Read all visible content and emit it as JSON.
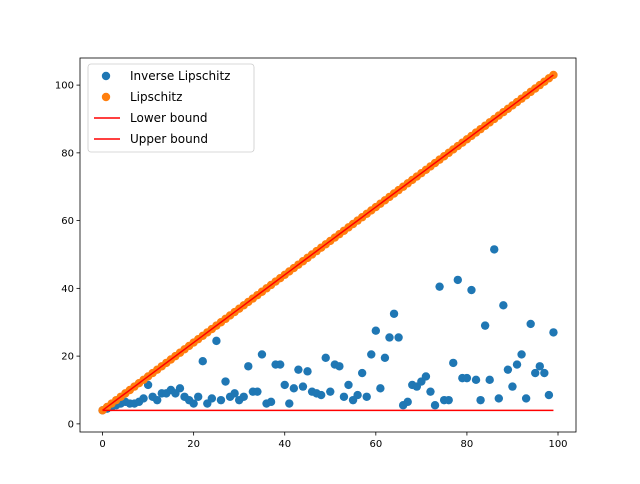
{
  "chart_data": {
    "type": "scatter",
    "x": [
      0,
      1,
      2,
      3,
      4,
      5,
      6,
      7,
      8,
      9,
      10,
      11,
      12,
      13,
      14,
      15,
      16,
      17,
      18,
      19,
      20,
      21,
      22,
      23,
      24,
      25,
      26,
      27,
      28,
      29,
      30,
      31,
      32,
      33,
      34,
      35,
      36,
      37,
      38,
      39,
      40,
      41,
      42,
      43,
      44,
      45,
      46,
      47,
      48,
      49,
      50,
      51,
      52,
      53,
      54,
      55,
      56,
      57,
      58,
      59,
      60,
      61,
      62,
      63,
      64,
      65,
      66,
      67,
      68,
      69,
      70,
      71,
      72,
      73,
      74,
      75,
      76,
      77,
      78,
      79,
      80,
      81,
      82,
      83,
      84,
      85,
      86,
      87,
      88,
      89,
      90,
      91,
      92,
      93,
      94,
      95,
      96,
      97,
      98,
      99
    ],
    "series": [
      {
        "name": "Inverse Lipschitz",
        "type": "scatter",
        "color": "#1f77b4",
        "values": [
          4,
          4.5,
          5,
          5.5,
          6,
          6.5,
          6,
          6,
          6.5,
          7.5,
          11.5,
          8,
          7,
          9,
          9,
          10,
          9,
          10.5,
          8,
          7,
          6,
          8,
          18.5,
          6,
          7.5,
          24.5,
          7,
          12.5,
          8,
          9,
          7,
          8,
          17,
          9.5,
          9.5,
          20.5,
          6,
          6.5,
          17.5,
          17.5,
          11.5,
          6,
          10.5,
          16,
          11,
          15.5,
          9.5,
          9,
          8.5,
          19.5,
          9.5,
          17.5,
          17,
          8,
          11.5,
          7,
          8.5,
          15,
          8,
          20.5,
          27.5,
          10.5,
          19.5,
          25.5,
          32.5,
          25.5,
          5.5,
          6.5,
          11.5,
          11,
          12.5,
          14,
          9.5,
          5.5,
          40.5,
          7,
          7,
          18,
          42.5,
          13.5,
          13.5,
          39.5,
          13,
          7,
          29,
          13,
          51.5,
          7.5,
          35,
          16,
          11,
          17.5,
          20.5,
          7.5,
          29.5,
          15,
          17,
          15,
          8.5,
          27
        ]
      },
      {
        "name": "Lipschitz",
        "type": "scatter",
        "color": "#ff7f0e",
        "values": [
          4,
          5,
          6,
          7,
          8,
          9,
          10,
          11,
          12,
          13,
          14,
          15,
          16,
          17,
          18,
          19,
          20,
          21,
          22,
          23,
          24,
          25,
          26,
          27,
          28,
          29,
          30,
          31,
          32,
          33,
          34,
          35,
          36,
          37,
          38,
          39,
          40,
          41,
          42,
          43,
          44,
          45,
          46,
          47,
          48,
          49,
          50,
          51,
          52,
          53,
          54,
          55,
          56,
          57,
          58,
          59,
          60,
          61,
          62,
          63,
          64,
          65,
          66,
          67,
          68,
          69,
          70,
          71,
          72,
          73,
          74,
          75,
          76,
          77,
          78,
          79,
          80,
          81,
          82,
          83,
          84,
          85,
          86,
          87,
          88,
          89,
          90,
          91,
          92,
          93,
          94,
          95,
          96,
          97,
          98,
          99,
          100,
          101,
          102,
          103
        ]
      },
      {
        "name": "Lower bound",
        "type": "line",
        "color": "#ff0000",
        "values": [
          4,
          4,
          4,
          4,
          4,
          4,
          4,
          4,
          4,
          4,
          4,
          4,
          4,
          4,
          4,
          4,
          4,
          4,
          4,
          4,
          4,
          4,
          4,
          4,
          4,
          4,
          4,
          4,
          4,
          4,
          4,
          4,
          4,
          4,
          4,
          4,
          4,
          4,
          4,
          4,
          4,
          4,
          4,
          4,
          4,
          4,
          4,
          4,
          4,
          4,
          4,
          4,
          4,
          4,
          4,
          4,
          4,
          4,
          4,
          4,
          4,
          4,
          4,
          4,
          4,
          4,
          4,
          4,
          4,
          4,
          4,
          4,
          4,
          4,
          4,
          4,
          4,
          4,
          4,
          4,
          4,
          4,
          4,
          4,
          4,
          4,
          4,
          4,
          4,
          4,
          4,
          4,
          4,
          4,
          4,
          4,
          4,
          4,
          4,
          4
        ]
      },
      {
        "name": "Upper bound",
        "type": "line",
        "color": "#ff0000",
        "values": [
          4,
          5,
          6,
          7,
          8,
          9,
          10,
          11,
          12,
          13,
          14,
          15,
          16,
          17,
          18,
          19,
          20,
          21,
          22,
          23,
          24,
          25,
          26,
          27,
          28,
          29,
          30,
          31,
          32,
          33,
          34,
          35,
          36,
          37,
          38,
          39,
          40,
          41,
          42,
          43,
          44,
          45,
          46,
          47,
          48,
          49,
          50,
          51,
          52,
          53,
          54,
          55,
          56,
          57,
          58,
          59,
          60,
          61,
          62,
          63,
          64,
          65,
          66,
          67,
          68,
          69,
          70,
          71,
          72,
          73,
          74,
          75,
          76,
          77,
          78,
          79,
          80,
          81,
          82,
          83,
          84,
          85,
          86,
          87,
          88,
          89,
          90,
          91,
          92,
          93,
          94,
          95,
          96,
          97,
          98,
          99,
          100,
          101,
          102,
          103
        ]
      }
    ],
    "xlim": [
      -4.95,
      103.95
    ],
    "ylim": [
      -2.4,
      108
    ],
    "xticks": [
      0,
      20,
      40,
      60,
      80,
      100
    ],
    "yticks": [
      0,
      20,
      40,
      60,
      80,
      100
    ],
    "legend": "upper left"
  }
}
